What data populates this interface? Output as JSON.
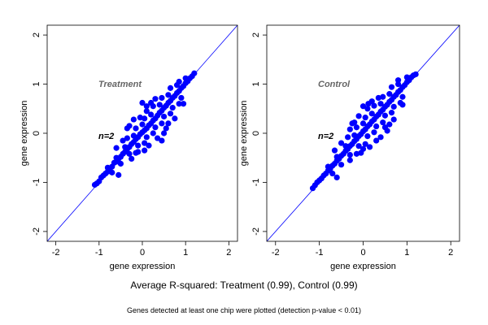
{
  "chart_data": [
    {
      "type": "scatter",
      "panel_label": "Treatment",
      "annotation": "n=2",
      "xlabel": "gene expression",
      "ylabel": "gene expression",
      "xlim": [
        -2.2,
        2.2
      ],
      "ylim": [
        -2.2,
        2.2
      ],
      "xticks": [
        -2,
        -1,
        0,
        1,
        2
      ],
      "yticks": [
        -2,
        -1,
        0,
        1,
        2
      ],
      "reference_line": "y = x",
      "point_color": "#0000ff",
      "line_color": "#0000ff",
      "points": [
        [
          -1.1,
          -1.05
        ],
        [
          -1.05,
          -1.02
        ],
        [
          -1.0,
          -0.98
        ],
        [
          -0.95,
          -0.9
        ],
        [
          -0.9,
          -0.86
        ],
        [
          -0.85,
          -0.82
        ],
        [
          -0.8,
          -0.78
        ],
        [
          -0.75,
          -0.72
        ],
        [
          -0.7,
          -0.68
        ],
        [
          -0.65,
          -0.6
        ],
        [
          -0.6,
          -0.58
        ],
        [
          -0.55,
          -0.52
        ],
        [
          -0.5,
          -0.48
        ],
        [
          -0.45,
          -0.42
        ],
        [
          -0.4,
          -0.38
        ],
        [
          -0.35,
          -0.32
        ],
        [
          -0.3,
          -0.28
        ],
        [
          -0.25,
          -0.22
        ],
        [
          -0.2,
          -0.18
        ],
        [
          -0.15,
          -0.12
        ],
        [
          -0.1,
          -0.08
        ],
        [
          -0.05,
          -0.02
        ],
        [
          0.0,
          0.02
        ],
        [
          0.05,
          0.06
        ],
        [
          0.1,
          0.1
        ],
        [
          0.15,
          0.16
        ],
        [
          0.2,
          0.2
        ],
        [
          0.25,
          0.26
        ],
        [
          0.3,
          0.3
        ],
        [
          0.35,
          0.36
        ],
        [
          0.4,
          0.42
        ],
        [
          0.45,
          0.46
        ],
        [
          0.5,
          0.52
        ],
        [
          0.55,
          0.56
        ],
        [
          0.6,
          0.62
        ],
        [
          0.65,
          0.66
        ],
        [
          0.7,
          0.72
        ],
        [
          0.75,
          0.76
        ],
        [
          0.8,
          0.82
        ],
        [
          0.85,
          0.86
        ],
        [
          0.9,
          0.92
        ],
        [
          0.95,
          0.96
        ],
        [
          1.0,
          1.02
        ],
        [
          1.05,
          1.06
        ],
        [
          1.1,
          1.12
        ],
        [
          1.15,
          1.16
        ],
        [
          1.2,
          1.22
        ],
        [
          -0.8,
          -0.7
        ],
        [
          -0.7,
          -0.8
        ],
        [
          -0.6,
          -0.5
        ],
        [
          -0.5,
          -0.62
        ],
        [
          -0.4,
          -0.28
        ],
        [
          -0.3,
          -0.42
        ],
        [
          -0.2,
          -0.05
        ],
        [
          -0.1,
          -0.25
        ],
        [
          0.0,
          0.18
        ],
        [
          0.1,
          -0.08
        ],
        [
          0.2,
          0.38
        ],
        [
          0.3,
          0.12
        ],
        [
          0.4,
          0.58
        ],
        [
          0.5,
          0.34
        ],
        [
          0.6,
          0.78
        ],
        [
          0.7,
          0.52
        ],
        [
          0.8,
          0.98
        ],
        [
          0.9,
          0.72
        ],
        [
          1.0,
          1.12
        ],
        [
          -0.35,
          -0.1
        ],
        [
          -0.15,
          0.1
        ],
        [
          0.05,
          0.3
        ],
        [
          0.25,
          0.55
        ],
        [
          0.45,
          0.72
        ],
        [
          0.65,
          0.92
        ],
        [
          -0.15,
          -0.4
        ],
        [
          0.05,
          -0.2
        ],
        [
          0.25,
          0.0
        ],
        [
          0.45,
          0.2
        ],
        [
          0.65,
          0.4
        ],
        [
          0.85,
          0.6
        ],
        [
          -0.2,
          0.28
        ],
        [
          -0.35,
          0.1
        ],
        [
          -0.05,
          0.32
        ],
        [
          0.1,
          0.55
        ],
        [
          0.0,
          0.62
        ],
        [
          0.45,
          -0.15
        ],
        [
          0.5,
          0.0
        ],
        [
          0.1,
          0.45
        ],
        [
          -0.45,
          -0.15
        ],
        [
          0.35,
          -0.1
        ],
        [
          -0.1,
          -0.38
        ],
        [
          0.55,
          0.1
        ],
        [
          0.2,
          0.62
        ],
        [
          -0.25,
          -0.52
        ],
        [
          0.75,
          0.3
        ],
        [
          -0.55,
          -0.85
        ],
        [
          0.15,
          -0.25
        ],
        [
          0.95,
          0.6
        ],
        [
          -0.3,
          0.15
        ],
        [
          0.3,
          0.7
        ],
        [
          0.6,
          0.2
        ],
        [
          0.05,
          -0.35
        ],
        [
          -0.6,
          -0.3
        ],
        [
          0.85,
          1.05
        ]
      ]
    },
    {
      "type": "scatter",
      "panel_label": "Control",
      "annotation": "n=2",
      "xlabel": "gene expression",
      "ylabel": "gene expression",
      "xlim": [
        -2.2,
        2.2
      ],
      "ylim": [
        -2.2,
        2.2
      ],
      "xticks": [
        -2,
        -1,
        0,
        1,
        2
      ],
      "yticks": [
        -2,
        -1,
        0,
        1,
        2
      ],
      "reference_line": "y = x",
      "point_color": "#0000ff",
      "line_color": "#0000ff",
      "points": [
        [
          -1.15,
          -1.12
        ],
        [
          -1.1,
          -1.06
        ],
        [
          -1.05,
          -1.0
        ],
        [
          -1.0,
          -0.96
        ],
        [
          -0.95,
          -0.92
        ],
        [
          -0.9,
          -0.86
        ],
        [
          -0.85,
          -0.82
        ],
        [
          -0.8,
          -0.76
        ],
        [
          -0.75,
          -0.72
        ],
        [
          -0.7,
          -0.66
        ],
        [
          -0.65,
          -0.62
        ],
        [
          -0.6,
          -0.56
        ],
        [
          -0.55,
          -0.52
        ],
        [
          -0.5,
          -0.46
        ],
        [
          -0.45,
          -0.42
        ],
        [
          -0.4,
          -0.36
        ],
        [
          -0.35,
          -0.32
        ],
        [
          -0.3,
          -0.26
        ],
        [
          -0.25,
          -0.22
        ],
        [
          -0.2,
          -0.16
        ],
        [
          -0.15,
          -0.12
        ],
        [
          -0.1,
          -0.06
        ],
        [
          -0.05,
          -0.02
        ],
        [
          0.0,
          0.04
        ],
        [
          0.05,
          0.08
        ],
        [
          0.1,
          0.14
        ],
        [
          0.15,
          0.18
        ],
        [
          0.2,
          0.24
        ],
        [
          0.25,
          0.28
        ],
        [
          0.3,
          0.34
        ],
        [
          0.35,
          0.38
        ],
        [
          0.4,
          0.44
        ],
        [
          0.45,
          0.48
        ],
        [
          0.5,
          0.54
        ],
        [
          0.55,
          0.58
        ],
        [
          0.6,
          0.64
        ],
        [
          0.65,
          0.68
        ],
        [
          0.7,
          0.74
        ],
        [
          0.75,
          0.78
        ],
        [
          0.8,
          0.84
        ],
        [
          0.85,
          0.88
        ],
        [
          0.9,
          0.94
        ],
        [
          0.95,
          0.98
        ],
        [
          1.0,
          1.04
        ],
        [
          1.05,
          1.08
        ],
        [
          1.1,
          1.14
        ],
        [
          1.15,
          1.18
        ],
        [
          1.2,
          1.2
        ],
        [
          -0.8,
          -0.68
        ],
        [
          -0.7,
          -0.82
        ],
        [
          -0.6,
          -0.48
        ],
        [
          -0.5,
          -0.64
        ],
        [
          -0.4,
          -0.26
        ],
        [
          -0.3,
          -0.44
        ],
        [
          -0.2,
          -0.04
        ],
        [
          -0.1,
          -0.26
        ],
        [
          0.0,
          0.2
        ],
        [
          0.1,
          -0.06
        ],
        [
          0.2,
          0.4
        ],
        [
          0.3,
          0.14
        ],
        [
          0.4,
          0.6
        ],
        [
          0.5,
          0.36
        ],
        [
          0.6,
          0.8
        ],
        [
          0.7,
          0.54
        ],
        [
          0.8,
          1.0
        ],
        [
          0.9,
          0.74
        ],
        [
          1.0,
          1.14
        ],
        [
          -0.35,
          -0.08
        ],
        [
          -0.15,
          0.12
        ],
        [
          0.05,
          0.32
        ],
        [
          0.25,
          0.56
        ],
        [
          0.45,
          0.74
        ],
        [
          0.65,
          0.94
        ],
        [
          -0.15,
          -0.42
        ],
        [
          0.05,
          -0.22
        ],
        [
          0.25,
          0.02
        ],
        [
          0.45,
          0.22
        ],
        [
          0.65,
          0.42
        ],
        [
          0.85,
          0.62
        ],
        [
          -0.1,
          0.35
        ],
        [
          -0.2,
          0.22
        ],
        [
          0.0,
          0.55
        ],
        [
          0.12,
          0.6
        ],
        [
          -0.3,
          0.08
        ],
        [
          0.4,
          -0.08
        ],
        [
          0.55,
          0.05
        ],
        [
          0.1,
          0.5
        ],
        [
          -0.5,
          -0.2
        ],
        [
          0.3,
          -0.15
        ],
        [
          -0.05,
          -0.4
        ],
        [
          0.5,
          0.12
        ],
        [
          0.2,
          0.65
        ],
        [
          -0.3,
          -0.55
        ],
        [
          0.7,
          0.28
        ],
        [
          -0.6,
          -0.9
        ],
        [
          0.15,
          -0.28
        ],
        [
          0.9,
          0.58
        ],
        [
          -0.25,
          0.2
        ],
        [
          0.35,
          0.72
        ],
        [
          0.6,
          0.18
        ],
        [
          0.0,
          -0.32
        ],
        [
          -0.65,
          -0.35
        ],
        [
          0.8,
          1.08
        ]
      ]
    }
  ],
  "captions": {
    "main": "Average R-squared: Treatment (0.99), Control (0.99)",
    "note": "Genes detected at least one chip were plotted (detection p-value < 0.01)"
  }
}
